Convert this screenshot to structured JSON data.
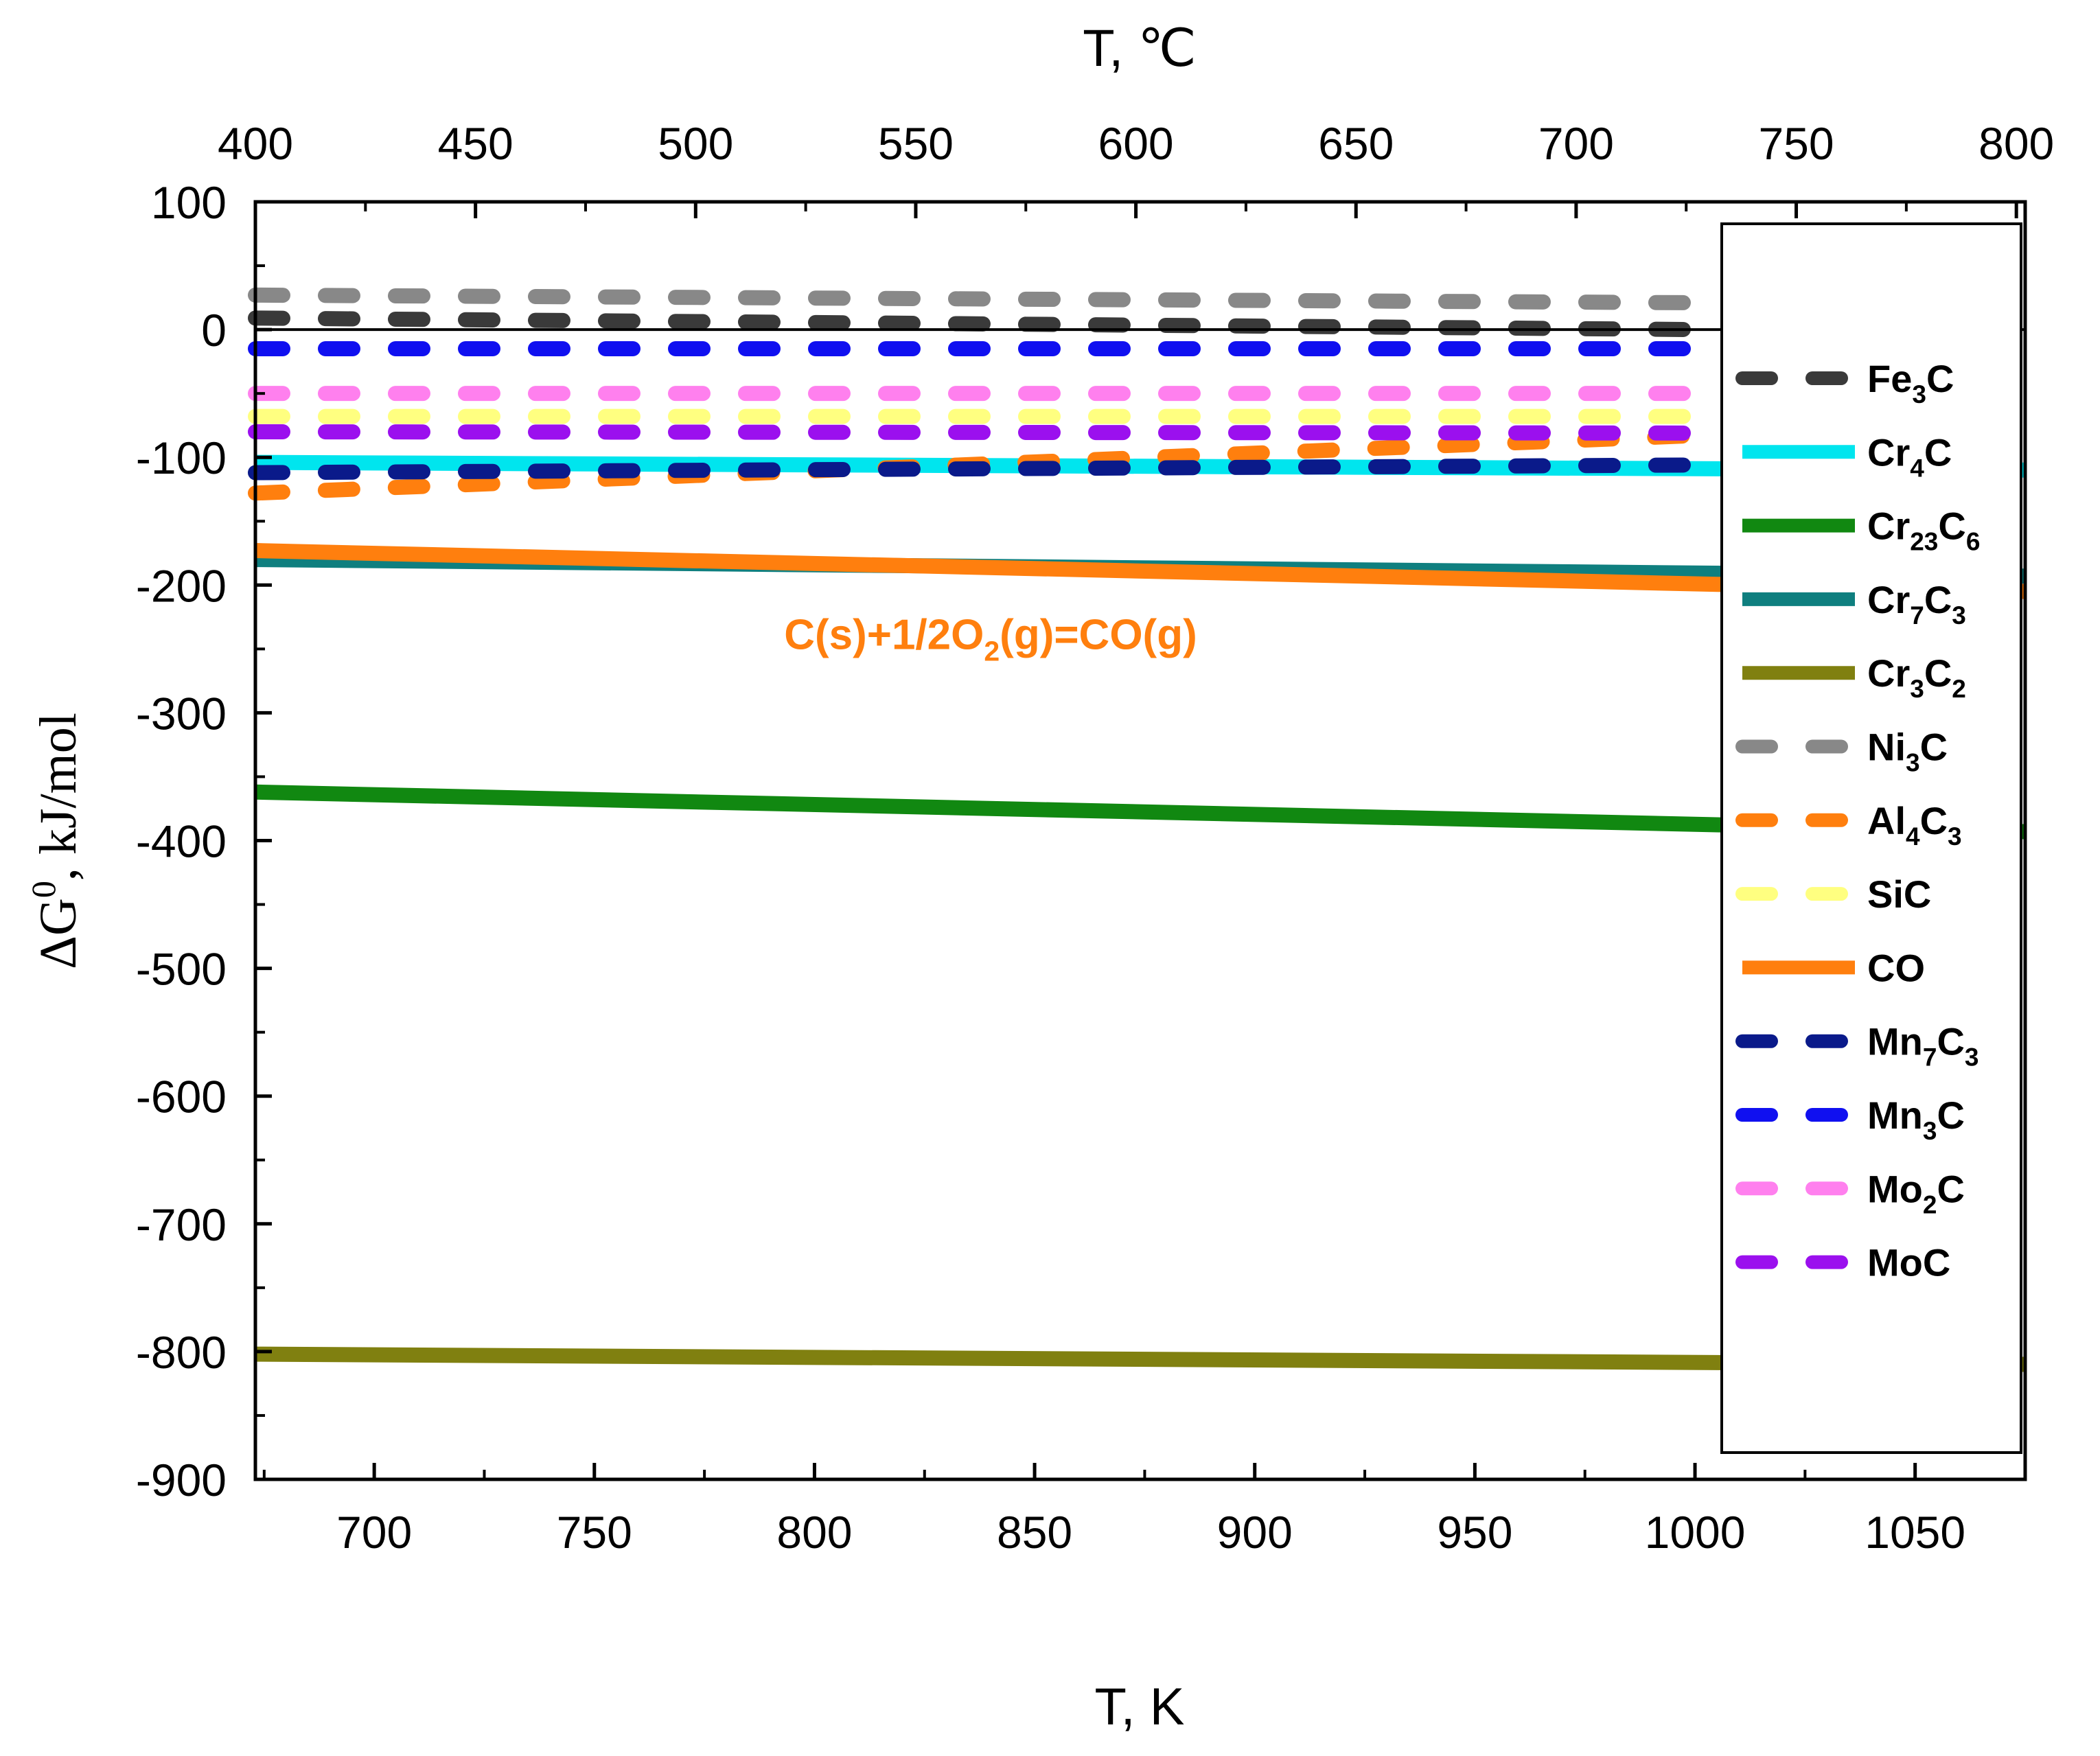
{
  "chart_data": {
    "type": "line",
    "title": "",
    "xlabel": "T, K",
    "x2label": "T, ℃",
    "ylabel": "ΔG",
    "ylabel_sup": "0",
    "ylabel_rest": ", kJ/mol",
    "xlim": [
      673,
      1075
    ],
    "ylim": [
      -900,
      100
    ],
    "x_ticks": [
      700,
      750,
      800,
      850,
      900,
      950,
      1000,
      1050
    ],
    "x2_ticks": [
      400,
      450,
      500,
      550,
      600,
      650,
      700,
      750,
      800
    ],
    "y_ticks": [
      100,
      0,
      -100,
      -200,
      -300,
      -400,
      -500,
      -600,
      -700,
      -800,
      -900
    ],
    "annotation": {
      "parts": [
        {
          "text": "C(s)+1/2O",
          "sub": false
        },
        {
          "text": "2",
          "sub": true
        },
        {
          "text": "(g)=CO(g)",
          "sub": false
        }
      ],
      "x": 840,
      "y": -250,
      "color": "#ff7f0e"
    },
    "legend_position": "right",
    "series": [
      {
        "name": "Fe3C",
        "label": [
          {
            "t": "Fe",
            "s": false
          },
          {
            "t": "3",
            "s": true
          },
          {
            "t": "C",
            "s": false
          }
        ],
        "color": "#3a3a3a",
        "dash": true,
        "x": [
          673,
          1000
        ],
        "y": [
          9,
          0
        ]
      },
      {
        "name": "Cr4C",
        "label": [
          {
            "t": "Cr",
            "s": false
          },
          {
            "t": "4",
            "s": true
          },
          {
            "t": "C",
            "s": false
          }
        ],
        "color": "#00e5ee",
        "dash": false,
        "x": [
          673,
          1075
        ],
        "y": [
          -104,
          -110
        ]
      },
      {
        "name": "Cr23C6",
        "label": [
          {
            "t": "Cr",
            "s": false
          },
          {
            "t": "23",
            "s": true
          },
          {
            "t": "C",
            "s": false
          },
          {
            "t": "6",
            "s": true
          }
        ],
        "color": "#118811",
        "dash": false,
        "x": [
          673,
          1075
        ],
        "y": [
          -362,
          -393
        ]
      },
      {
        "name": "Cr7C3",
        "label": [
          {
            "t": "Cr",
            "s": false
          },
          {
            "t": "7",
            "s": true
          },
          {
            "t": "C",
            "s": false
          },
          {
            "t": "3",
            "s": true
          }
        ],
        "color": "#0f7f7f",
        "dash": false,
        "x": [
          673,
          1075
        ],
        "y": [
          -180,
          -193
        ]
      },
      {
        "name": "Cr3C2",
        "label": [
          {
            "t": "Cr",
            "s": false
          },
          {
            "t": "3",
            "s": true
          },
          {
            "t": "C",
            "s": false
          },
          {
            "t": "2",
            "s": true
          }
        ],
        "color": "#808010",
        "dash": false,
        "x": [
          673,
          1075
        ],
        "y": [
          -802,
          -810
        ]
      },
      {
        "name": "Ni3C",
        "label": [
          {
            "t": "Ni",
            "s": false
          },
          {
            "t": "3",
            "s": true
          },
          {
            "t": "C",
            "s": false
          }
        ],
        "color": "#888888",
        "dash": true,
        "x": [
          673,
          1000
        ],
        "y": [
          27,
          21
        ]
      },
      {
        "name": "Al4C3",
        "label": [
          {
            "t": "Al",
            "s": false
          },
          {
            "t": "4",
            "s": true
          },
          {
            "t": "C",
            "s": false
          },
          {
            "t": "3",
            "s": true
          }
        ],
        "color": "#ff7f0e",
        "dash": true,
        "x": [
          673,
          1000
        ],
        "y": [
          -128,
          -83
        ]
      },
      {
        "name": "SiC",
        "label": [
          {
            "t": "SiC",
            "s": false
          }
        ],
        "color": "#ffff80",
        "dash": true,
        "x": [
          673,
          1000
        ],
        "y": [
          -68,
          -68
        ]
      },
      {
        "name": "CO",
        "label": [
          {
            "t": "CO",
            "s": false
          }
        ],
        "color": "#ff7f0e",
        "dash": false,
        "x": [
          673,
          1075
        ],
        "y": [
          -173,
          -205
        ]
      },
      {
        "name": "Mn7C3",
        "label": [
          {
            "t": "Mn",
            "s": false
          },
          {
            "t": "7",
            "s": true
          },
          {
            "t": "C",
            "s": false
          },
          {
            "t": "3",
            "s": true
          }
        ],
        "color": "#0a1a8a",
        "dash": true,
        "x": [
          673,
          1000
        ],
        "y": [
          -112,
          -106
        ]
      },
      {
        "name": "Mn3C",
        "label": [
          {
            "t": "Mn",
            "s": false
          },
          {
            "t": "3",
            "s": true
          },
          {
            "t": "C",
            "s": false
          }
        ],
        "color": "#1010f0",
        "dash": true,
        "x": [
          673,
          1000
        ],
        "y": [
          -15,
          -15
        ]
      },
      {
        "name": "Mo2C",
        "label": [
          {
            "t": "Mo",
            "s": false
          },
          {
            "t": "2",
            "s": true
          },
          {
            "t": "C",
            "s": false
          }
        ],
        "color": "#ff80ee",
        "dash": true,
        "x": [
          673,
          1000
        ],
        "y": [
          -50,
          -50
        ]
      },
      {
        "name": "MoC",
        "label": [
          {
            "t": "MoC",
            "s": false
          }
        ],
        "color": "#9b10ee",
        "dash": true,
        "x": [
          673,
          1000
        ],
        "y": [
          -80,
          -81
        ]
      }
    ]
  }
}
